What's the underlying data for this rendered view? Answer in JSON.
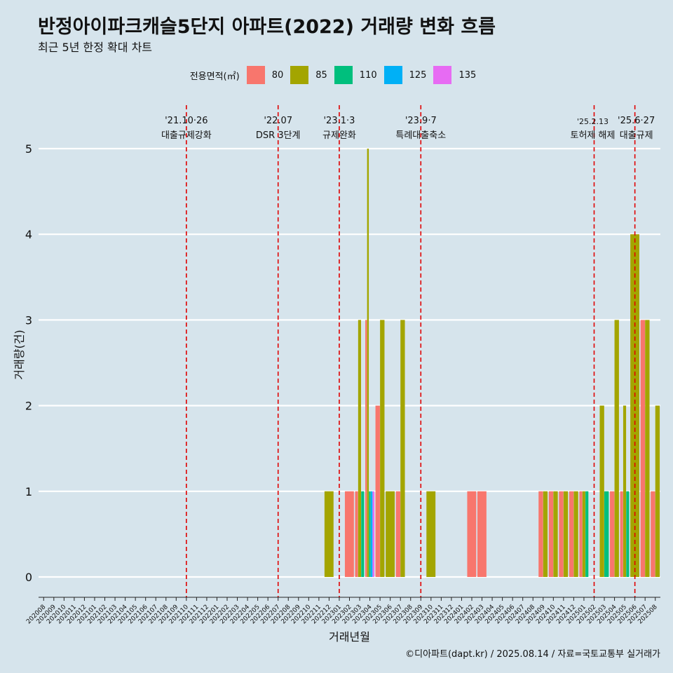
{
  "header": {
    "title": "반정아이파크캐슬5단지 아파트(2022) 거래량 변화 흐름",
    "subtitle": "최근 5년 한정 확대 차트"
  },
  "legend": {
    "title": "전용면적(㎡)",
    "items": [
      {
        "label": "80",
        "color": "#f8766d"
      },
      {
        "label": "85",
        "color": "#a3a500"
      },
      {
        "label": "110",
        "color": "#00bf7d"
      },
      {
        "label": "125",
        "color": "#00b0f6"
      },
      {
        "label": "135",
        "color": "#e76bf3"
      }
    ]
  },
  "caption": "©디아파트(dapt.kr) / 2025.08.14 / 자료=국토교통부 실거래가",
  "chart_data": {
    "type": "bar",
    "stacking": "dodged by area",
    "xlabel": "거래년월",
    "ylabel": "거래량(건)",
    "ylim": [
      0,
      5
    ],
    "yticks": [
      0,
      1,
      2,
      3,
      4,
      5
    ],
    "grid": "horizontal",
    "legend_position": "top",
    "categories": [
      "202008",
      "202009",
      "202010",
      "202011",
      "202012",
      "202101",
      "202102",
      "202103",
      "202104",
      "202105",
      "202106",
      "202107",
      "202108",
      "202109",
      "202110",
      "202111",
      "202112",
      "202201",
      "202202",
      "202203",
      "202204",
      "202205",
      "202206",
      "202207",
      "202208",
      "202209",
      "202210",
      "202211",
      "202212",
      "202301",
      "202302",
      "202303",
      "202304",
      "202305",
      "202306",
      "202307",
      "202308",
      "202309",
      "202310",
      "202311",
      "202312",
      "202401",
      "202402",
      "202403",
      "202404",
      "202405",
      "202406",
      "202407",
      "202408",
      "202409",
      "202410",
      "202411",
      "202412",
      "202501",
      "202502",
      "202503",
      "202504",
      "202505",
      "202506",
      "202507",
      "202508"
    ],
    "series": [
      {
        "name": "80",
        "color": "#f8766d",
        "values": {
          "202302": 1,
          "202303": 1,
          "202304": 3,
          "202305": 2,
          "202307": 1,
          "202402": 1,
          "202403": 1,
          "202409": 1,
          "202410": 1,
          "202411": 1,
          "202412": 1,
          "202501": 1,
          "202504": 1,
          "202505": 1,
          "202507": 3,
          "202508": 1
        }
      },
      {
        "name": "85",
        "color": "#a3a500",
        "values": {
          "202212": 1,
          "202303": 3,
          "202304": 5,
          "202305": 3,
          "202306": 1,
          "202307": 3,
          "202310": 1,
          "202409": 1,
          "202410": 1,
          "202411": 1,
          "202412": 1,
          "202501": 1,
          "202503": 2,
          "202504": 3,
          "202505": 2,
          "202506": 4,
          "202507": 3,
          "202508": 2
        }
      },
      {
        "name": "110",
        "color": "#00bf7d",
        "values": {
          "202303": 1,
          "202304": 1,
          "202501": 1,
          "202503": 1,
          "202505": 1
        }
      },
      {
        "name": "125",
        "color": "#00b0f6",
        "values": {
          "202304": 1
        }
      },
      {
        "name": "135",
        "color": "#e76bf3",
        "values": {
          "202304": 1
        }
      }
    ],
    "annotations": [
      {
        "x": "202110",
        "date": "'21.10·26",
        "label": "대출규제강화"
      },
      {
        "x": "202207",
        "date": "'22.07",
        "label": "DSR 3단계"
      },
      {
        "x": "202301",
        "date": "'23.1·3",
        "label": "규제완화"
      },
      {
        "x": "202309",
        "date": "'23.9·7",
        "label": "특례대출축소"
      },
      {
        "x": "202502",
        "date": "'25.2.13",
        "label": "토허제 해제"
      },
      {
        "x": "202506",
        "date": "'25.6·27",
        "label": "대출규제"
      }
    ]
  }
}
